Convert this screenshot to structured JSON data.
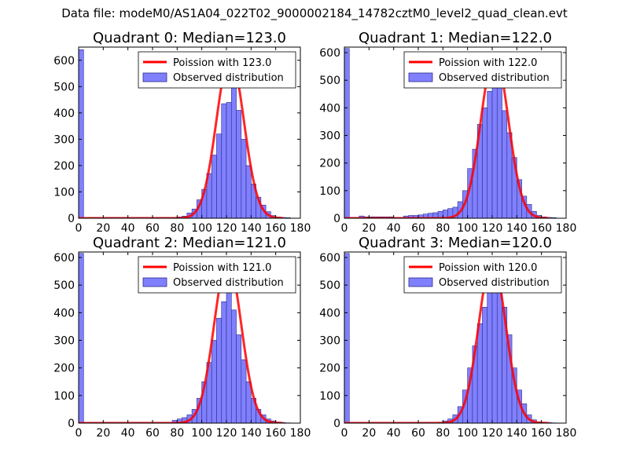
{
  "page": {
    "suptitle": "Data file: modeM0/AS1A04_022T02_9000002184_14782cztM0_level2_quad_clean.evt"
  },
  "colors": {
    "hist_fill": "#8080ff",
    "hist_edge": "#2b2b8a",
    "poisson": "#ff0000"
  },
  "chart_data": [
    {
      "type": "bar",
      "title": "Quadrant 0: Median=123.0",
      "xlim": [
        0,
        180
      ],
      "ylim": [
        0,
        650
      ],
      "xticks": [
        0,
        20,
        40,
        60,
        80,
        100,
        120,
        140,
        160,
        180
      ],
      "xtick_labels": [
        "0",
        "20",
        "40",
        "60",
        "80",
        "100",
        "120",
        "140",
        "160",
        "180"
      ],
      "yticks": [
        0,
        100,
        200,
        300,
        400,
        500,
        600
      ],
      "ytick_labels": [
        "0",
        "100",
        "200",
        "300",
        "400",
        "500",
        "600"
      ],
      "legend": {
        "loc": "upper right",
        "line_label": "Poission with 123.0",
        "bar_label": "Observed distribution"
      },
      "median": 123.0,
      "peak": 615,
      "bin_width": 4,
      "bin_starts": [
        0,
        4,
        8,
        12,
        16,
        20,
        24,
        28,
        32,
        36,
        40,
        44,
        48,
        52,
        56,
        60,
        64,
        68,
        72,
        76,
        80,
        84,
        88,
        92,
        96,
        100,
        104,
        108,
        112,
        116,
        120,
        124,
        128,
        132,
        136,
        140,
        144,
        148,
        152,
        156,
        160,
        164,
        168
      ],
      "counts": [
        640,
        3,
        3,
        3,
        3,
        3,
        3,
        3,
        3,
        3,
        3,
        3,
        3,
        3,
        3,
        3,
        3,
        3,
        3,
        3,
        5,
        8,
        20,
        35,
        70,
        110,
        170,
        240,
        320,
        435,
        440,
        510,
        410,
        300,
        200,
        130,
        80,
        50,
        25,
        10,
        5,
        3,
        2
      ]
    },
    {
      "type": "bar",
      "title": "Quadrant 1: Median=122.0",
      "xlim": [
        0,
        180
      ],
      "ylim": [
        0,
        620
      ],
      "xticks": [
        0,
        20,
        40,
        60,
        80,
        100,
        120,
        140,
        160,
        180
      ],
      "xtick_labels": [
        "0",
        "20",
        "40",
        "60",
        "80",
        "100",
        "120",
        "140",
        "160",
        "180"
      ],
      "yticks": [
        0,
        100,
        200,
        300,
        400,
        500,
        600
      ],
      "ytick_labels": [
        "0",
        "100",
        "200",
        "300",
        "400",
        "500",
        "600"
      ],
      "legend": {
        "loc": "upper right",
        "line_label": "Poission with 122.0",
        "bar_label": "Observed distribution"
      },
      "median": 122.0,
      "peak": 595,
      "bin_width": 4,
      "bin_starts": [
        0,
        4,
        8,
        12,
        16,
        20,
        24,
        28,
        32,
        36,
        40,
        44,
        48,
        52,
        56,
        60,
        64,
        68,
        72,
        76,
        80,
        84,
        88,
        92,
        96,
        100,
        104,
        108,
        112,
        116,
        120,
        124,
        128,
        132,
        136,
        140,
        144,
        148,
        152,
        156,
        160,
        164,
        168
      ],
      "counts": [
        615,
        3,
        3,
        8,
        5,
        5,
        5,
        5,
        5,
        5,
        3,
        3,
        8,
        10,
        10,
        12,
        15,
        18,
        20,
        25,
        30,
        35,
        40,
        60,
        100,
        180,
        250,
        340,
        400,
        460,
        520,
        480,
        390,
        310,
        220,
        140,
        80,
        50,
        25,
        10,
        5,
        3,
        2
      ]
    },
    {
      "type": "bar",
      "title": "Quadrant 2: Median=121.0",
      "xlim": [
        0,
        180
      ],
      "ylim": [
        0,
        620
      ],
      "xticks": [
        0,
        20,
        40,
        60,
        80,
        100,
        120,
        140,
        160,
        180
      ],
      "xtick_labels": [
        "0",
        "20",
        "40",
        "60",
        "80",
        "100",
        "120",
        "140",
        "160",
        "180"
      ],
      "yticks": [
        0,
        100,
        200,
        300,
        400,
        500,
        600
      ],
      "ytick_labels": [
        "0",
        "100",
        "200",
        "300",
        "400",
        "500",
        "600"
      ],
      "legend": {
        "loc": "upper right",
        "line_label": "Poission with 121.0",
        "bar_label": "Observed distribution"
      },
      "median": 121.0,
      "peak": 590,
      "bin_width": 4,
      "bin_starts": [
        0,
        4,
        8,
        12,
        16,
        20,
        24,
        28,
        32,
        36,
        40,
        44,
        48,
        52,
        56,
        60,
        64,
        68,
        72,
        76,
        80,
        84,
        88,
        92,
        96,
        100,
        104,
        108,
        112,
        116,
        120,
        124,
        128,
        132,
        136,
        140,
        144,
        148,
        152,
        156,
        160,
        164,
        168
      ],
      "counts": [
        615,
        3,
        3,
        3,
        3,
        3,
        3,
        3,
        3,
        3,
        3,
        3,
        3,
        3,
        3,
        3,
        3,
        3,
        3,
        10,
        15,
        20,
        30,
        50,
        90,
        150,
        220,
        300,
        380,
        440,
        480,
        410,
        320,
        230,
        150,
        90,
        50,
        30,
        15,
        8,
        4,
        2,
        1
      ]
    },
    {
      "type": "bar",
      "title": "Quadrant 3: Median=120.0",
      "xlim": [
        0,
        180
      ],
      "ylim": [
        0,
        620
      ],
      "xticks": [
        0,
        20,
        40,
        60,
        80,
        100,
        120,
        140,
        160,
        180
      ],
      "xtick_labels": [
        "0",
        "20",
        "40",
        "60",
        "80",
        "100",
        "120",
        "140",
        "160",
        "180"
      ],
      "yticks": [
        0,
        100,
        200,
        300,
        400,
        500,
        600
      ],
      "ytick_labels": [
        "0",
        "100",
        "200",
        "300",
        "400",
        "500",
        "600"
      ],
      "legend": {
        "loc": "upper right",
        "line_label": "Poission with 120.0",
        "bar_label": "Observed distribution"
      },
      "median": 120.0,
      "peak": 590,
      "bin_width": 4,
      "bin_starts": [
        0,
        4,
        8,
        12,
        16,
        20,
        24,
        28,
        32,
        36,
        40,
        44,
        48,
        52,
        56,
        60,
        64,
        68,
        72,
        76,
        80,
        84,
        88,
        92,
        96,
        100,
        104,
        108,
        112,
        116,
        120,
        124,
        128,
        132,
        136,
        140,
        144,
        148,
        152,
        156,
        160,
        164,
        168
      ],
      "counts": [
        615,
        3,
        3,
        3,
        3,
        3,
        3,
        3,
        3,
        3,
        3,
        3,
        3,
        3,
        3,
        3,
        3,
        3,
        3,
        3,
        8,
        15,
        30,
        60,
        120,
        200,
        280,
        360,
        420,
        480,
        500,
        480,
        420,
        320,
        200,
        120,
        70,
        30,
        12,
        5,
        3,
        2,
        1
      ]
    }
  ]
}
